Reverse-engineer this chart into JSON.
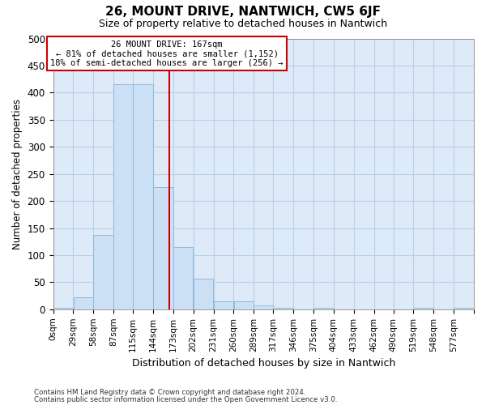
{
  "title": "26, MOUNT DRIVE, NANTWICH, CW5 6JF",
  "subtitle": "Size of property relative to detached houses in Nantwich",
  "xlabel": "Distribution of detached houses by size in Nantwich",
  "ylabel": "Number of detached properties",
  "bar_color": "#cce0f5",
  "bar_edge_color": "#92b8d8",
  "bin_edges": [
    0,
    29,
    58,
    87,
    115,
    144,
    173,
    202,
    231,
    260,
    289,
    317,
    346,
    375,
    404,
    433,
    462,
    490,
    519,
    548,
    577
  ],
  "bin_labels": [
    "0sqm",
    "29sqm",
    "58sqm",
    "87sqm",
    "115sqm",
    "144sqm",
    "173sqm",
    "202sqm",
    "231sqm",
    "260sqm",
    "289sqm",
    "317sqm",
    "346sqm",
    "375sqm",
    "404sqm",
    "433sqm",
    "462sqm",
    "490sqm",
    "519sqm",
    "548sqm",
    "577sqm"
  ],
  "bar_heights": [
    2,
    22,
    137,
    415,
    415,
    225,
    115,
    57,
    15,
    15,
    7,
    2,
    0,
    2,
    0,
    0,
    0,
    0,
    2,
    0,
    2
  ],
  "property_size": 167,
  "vline_color": "#cc0000",
  "annotation_line1": "26 MOUNT DRIVE: 167sqm",
  "annotation_line2": "← 81% of detached houses are smaller (1,152)",
  "annotation_line3": "18% of semi-detached houses are larger (256) →",
  "annotation_box_color": "#ffffff",
  "annotation_box_edge": "#cc0000",
  "ylim": [
    0,
    500
  ],
  "yticks": [
    0,
    50,
    100,
    150,
    200,
    250,
    300,
    350,
    400,
    450,
    500
  ],
  "grid_color": "#b8d0e8",
  "plot_bg_color": "#deeaf7",
  "fig_bg_color": "#ffffff",
  "footnote1": "Contains HM Land Registry data © Crown copyright and database right 2024.",
  "footnote2": "Contains public sector information licensed under the Open Government Licence v3.0."
}
